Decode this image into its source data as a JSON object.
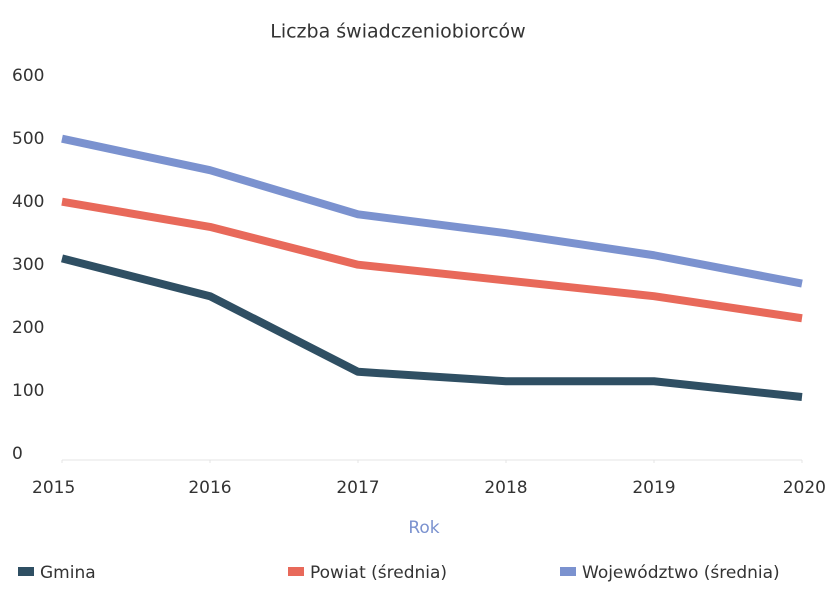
{
  "chart_data": {
    "type": "line",
    "title": "Liczba świadczeniobiorców",
    "x_label": "Rok",
    "x": [
      2015,
      2016,
      2017,
      2018,
      2019,
      2020
    ],
    "xlim": [
      2015,
      2020
    ],
    "xticks": [
      2015,
      2016,
      2017,
      2018,
      2019,
      2020
    ],
    "ylim": [
      0,
      600
    ],
    "yticks": [
      0,
      100,
      200,
      300,
      400,
      500,
      600
    ],
    "legend": "bottom",
    "series": [
      {
        "name": "Gmina",
        "color": "#2f4f63",
        "values": [
          320,
          260,
          140,
          125,
          125,
          100
        ]
      },
      {
        "name": "Powiat (średnia)",
        "color": "#e8695a",
        "values": [
          410,
          370,
          310,
          285,
          260,
          225
        ]
      },
      {
        "name": "Województwo (średnia)",
        "color": "#7b92cf",
        "values": [
          510,
          460,
          390,
          360,
          325,
          280
        ]
      }
    ]
  }
}
